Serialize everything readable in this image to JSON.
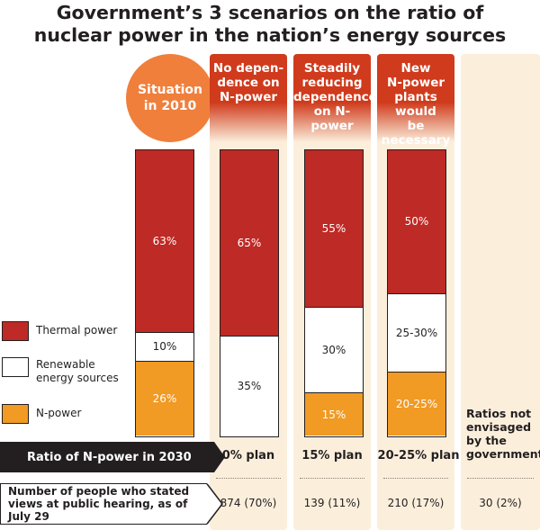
{
  "title_line1": "Government’s 3 scenarios on the ratio of",
  "title_line2": "nuclear power in the nation’s energy sources",
  "colors": {
    "thermal": "#be2a25",
    "renewable": "#ffffff",
    "npower": "#f19a24",
    "header": "#cf3b1c",
    "circle": "#f07f3c",
    "column_bg": "#fbefdc"
  },
  "legend": {
    "thermal": "Thermal power",
    "renewable_line1": "Renewable",
    "renewable_line2": "energy sources",
    "npower": "N-power"
  },
  "situation": {
    "line1": "Situation",
    "line2": "in 2010"
  },
  "headers": {
    "h1": [
      "No depen-",
      "dence on",
      "N-power"
    ],
    "h2": [
      "Steadily",
      "reducing",
      "dependence",
      "on N-power"
    ],
    "h3": [
      "New",
      "N-power",
      "plants would",
      "be necessary"
    ]
  },
  "ratio_label": "Ratio of N-power in 2030",
  "plans": [
    "0% plan",
    "15% plan",
    "20-25% plan"
  ],
  "people_label": [
    "Number of people who stated",
    "views at public hearing, as of",
    "July 29"
  ],
  "counts": [
    "874 (70%)",
    "139 (11%)",
    "210 (17%)",
    "30 (2%)"
  ],
  "not_envisaged": [
    "Ratios not",
    "envisaged",
    "by the",
    "government"
  ],
  "chart_data": {
    "type": "bar",
    "stacked": true,
    "categories": [
      "Situation in 2010",
      "0% plan",
      "15% plan",
      "20-25% plan"
    ],
    "series": [
      {
        "name": "Thermal power",
        "values": [
          63,
          65,
          55,
          50
        ],
        "labels": [
          "63%",
          "65%",
          "55%",
          "50%"
        ]
      },
      {
        "name": "Renewable energy sources",
        "values": [
          10,
          35,
          30,
          27.5
        ],
        "labels": [
          "10%",
          "35%",
          "30%",
          "25-30%"
        ]
      },
      {
        "name": "N-power",
        "values": [
          26,
          0,
          15,
          22.5
        ],
        "labels": [
          "26%",
          "",
          "15%",
          "20-25%"
        ]
      }
    ]
  }
}
